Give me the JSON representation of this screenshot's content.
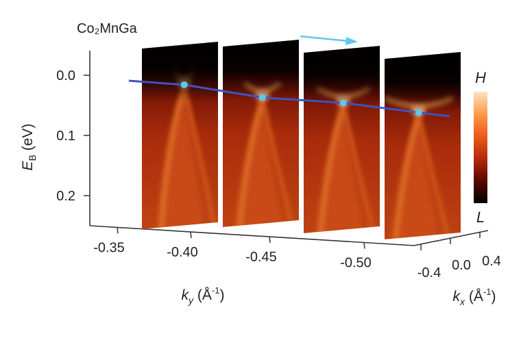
{
  "chart_data": {
    "type": "heatmap",
    "title": "Co₂MnGa",
    "ylabel": {
      "symbol": "E",
      "sub": "B",
      "unit": " (eV)"
    },
    "y_ticks": [
      "0.0",
      "0.1",
      "0.2"
    ],
    "y_values": [
      0.0,
      0.1,
      0.2
    ],
    "ky_label": {
      "symbol": "k",
      "sub": "y",
      "unit_open": " (Å",
      "unit_sup": "-1",
      "unit_close": ")"
    },
    "ky_ticks": [
      "-0.35",
      "-0.40",
      "-0.45",
      "-0.50"
    ],
    "kx_label": {
      "symbol": "k",
      "sub": "x",
      "unit_open": " (Å",
      "unit_sup": "-1",
      "unit_close": ")"
    },
    "kx_ticks": [
      "-0.4",
      "0.0",
      "0.4"
    ],
    "colorbar": {
      "high": "H",
      "low": "L",
      "colors": [
        "#000000",
        "#5a0800",
        "#b52a0a",
        "#ea5a1a",
        "#ff9a4a",
        "#ffe2c4"
      ]
    },
    "slices": [
      {
        "ky": -0.385,
        "node_energy": 0.017
      },
      {
        "ky": -0.432,
        "node_energy": 0.037
      },
      {
        "ky": -0.478,
        "node_energy": 0.046
      },
      {
        "ky": -0.525,
        "node_energy": 0.062
      }
    ],
    "node_line_color": "#3c54c0",
    "node_marker_color": "#5ec8e8",
    "arrow_color": "#5ec8e8"
  }
}
